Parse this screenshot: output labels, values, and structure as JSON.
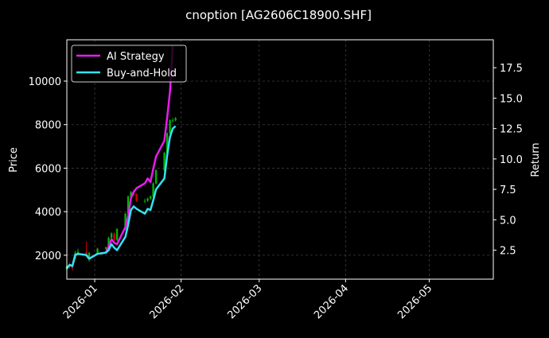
{
  "colors": {
    "background": "#000000",
    "text": "#ffffff",
    "ai_strategy": "#e81cf0",
    "buy_and_hold": "#33e3f0",
    "candle_up": "#00b400",
    "candle_down": "#c80000",
    "grid": "#3c3c3c"
  },
  "chart_data": {
    "type": "line",
    "title": "cnoption [AG2606C18900.SHF]",
    "xlabel": "",
    "ylabel_left": "Price",
    "ylabel_right": "Return",
    "grid": true,
    "legend_placement": "top-left",
    "x_range": [
      "2025-12-22",
      "2026-05-24"
    ],
    "x_ticks": [
      "2026-01",
      "2026-02",
      "2026-03",
      "2026-04",
      "2026-05"
    ],
    "x_tick_dates": [
      "2026-01-01",
      "2026-02-01",
      "2026-03-01",
      "2026-04-01",
      "2026-05-01"
    ],
    "y_left_range": [
      900,
      11900
    ],
    "y_left_ticks": [
      "2000",
      "4000",
      "6000",
      "8000",
      "10000"
    ],
    "y_right_range": [
      0.12,
      19.8
    ],
    "y_right_ticks": [
      "2.5",
      "5.0",
      "7.5",
      "10.0",
      "12.5",
      "15.0",
      "17.5"
    ],
    "series": [
      {
        "name": "AI Strategy",
        "axis": "right",
        "x": [
          "2025-12-22",
          "2025-12-23",
          "2025-12-24",
          "2025-12-25",
          "2025-12-26",
          "2025-12-29",
          "2025-12-30",
          "2026-01-02",
          "2026-01-05",
          "2026-01-06",
          "2026-01-07",
          "2026-01-08",
          "2026-01-09",
          "2026-01-12",
          "2026-01-13",
          "2026-01-14",
          "2026-01-15",
          "2026-01-16",
          "2026-01-19",
          "2026-01-20",
          "2026-01-21",
          "2026-01-22",
          "2026-01-23",
          "2026-01-26",
          "2026-01-27",
          "2026-01-28",
          "2026-01-29"
        ],
        "y": [
          1.0,
          1.3,
          1.2,
          2.1,
          2.2,
          2.1,
          1.8,
          2.2,
          2.3,
          2.8,
          3.4,
          3.1,
          3.0,
          4.4,
          5.3,
          6.8,
          7.3,
          7.6,
          8.0,
          8.4,
          8.1,
          9.2,
          10.2,
          11.5,
          13.4,
          15.5,
          19.3
        ]
      },
      {
        "name": "Buy-and-Hold",
        "axis": "right",
        "x": [
          "2025-12-22",
          "2025-12-23",
          "2025-12-24",
          "2025-12-25",
          "2025-12-26",
          "2025-12-29",
          "2025-12-30",
          "2026-01-02",
          "2026-01-05",
          "2026-01-06",
          "2026-01-07",
          "2026-01-08",
          "2026-01-09",
          "2026-01-12",
          "2026-01-13",
          "2026-01-14",
          "2026-01-15",
          "2026-01-16",
          "2026-01-19",
          "2026-01-20",
          "2026-01-21",
          "2026-01-22",
          "2026-01-23",
          "2026-01-26",
          "2026-01-27",
          "2026-01-28",
          "2026-01-29",
          "2026-01-30"
        ],
        "y": [
          1.0,
          1.3,
          1.2,
          2.1,
          2.2,
          2.1,
          1.8,
          2.2,
          2.3,
          2.5,
          3.0,
          2.7,
          2.5,
          3.6,
          4.6,
          5.8,
          6.1,
          5.9,
          5.5,
          5.9,
          5.8,
          6.6,
          7.5,
          8.4,
          10.3,
          11.8,
          12.5,
          12.7
        ]
      }
    ],
    "candles": {
      "axis": "left",
      "x": [
        "2025-12-22",
        "2025-12-23",
        "2025-12-24",
        "2025-12-25",
        "2025-12-26",
        "2025-12-29",
        "2025-12-30",
        "2026-01-02",
        "2026-01-05",
        "2026-01-06",
        "2026-01-07",
        "2026-01-08",
        "2026-01-09",
        "2026-01-12",
        "2026-01-13",
        "2026-01-14",
        "2026-01-15",
        "2026-01-16",
        "2026-01-19",
        "2026-01-20",
        "2026-01-21",
        "2026-01-22",
        "2026-01-23",
        "2026-01-26",
        "2026-01-27",
        "2026-01-28",
        "2026-01-29",
        "2026-01-30"
      ],
      "open": [
        1350,
        1500,
        1450,
        1850,
        2100,
        2150,
        1800,
        2100,
        2300,
        2350,
        2800,
        3000,
        2700,
        3200,
        3900,
        4700,
        4900,
        4800,
        4500,
        4500,
        4600,
        4700,
        5300,
        5900,
        6700,
        7600,
        8200,
        8200
      ],
      "close": [
        1500,
        1450,
        1400,
        2100,
        2150,
        2000,
        2100,
        2300,
        2350,
        2800,
        3000,
        2700,
        3200,
        3900,
        4700,
        4900,
        4800,
        4500,
        4500,
        4600,
        4700,
        5300,
        5900,
        6700,
        7600,
        8200,
        8200,
        8300
      ],
      "high": [
        1550,
        1650,
        1500,
        2200,
        2300,
        2650,
        2150,
        2350,
        2400,
        2850,
        3050,
        3050,
        3250,
        3950,
        4750,
        4950,
        5000,
        4850,
        4600,
        4650,
        4750,
        5350,
        5950,
        6750,
        7650,
        8250,
        8300,
        8350
      ],
      "low": [
        1300,
        1400,
        1300,
        1800,
        2050,
        1950,
        1700,
        2050,
        2250,
        2300,
        2750,
        2650,
        2650,
        3150,
        3850,
        4650,
        4750,
        4450,
        4400,
        4450,
        4550,
        4650,
        5250,
        5850,
        6650,
        7550,
        8100,
        8150
      ]
    }
  }
}
